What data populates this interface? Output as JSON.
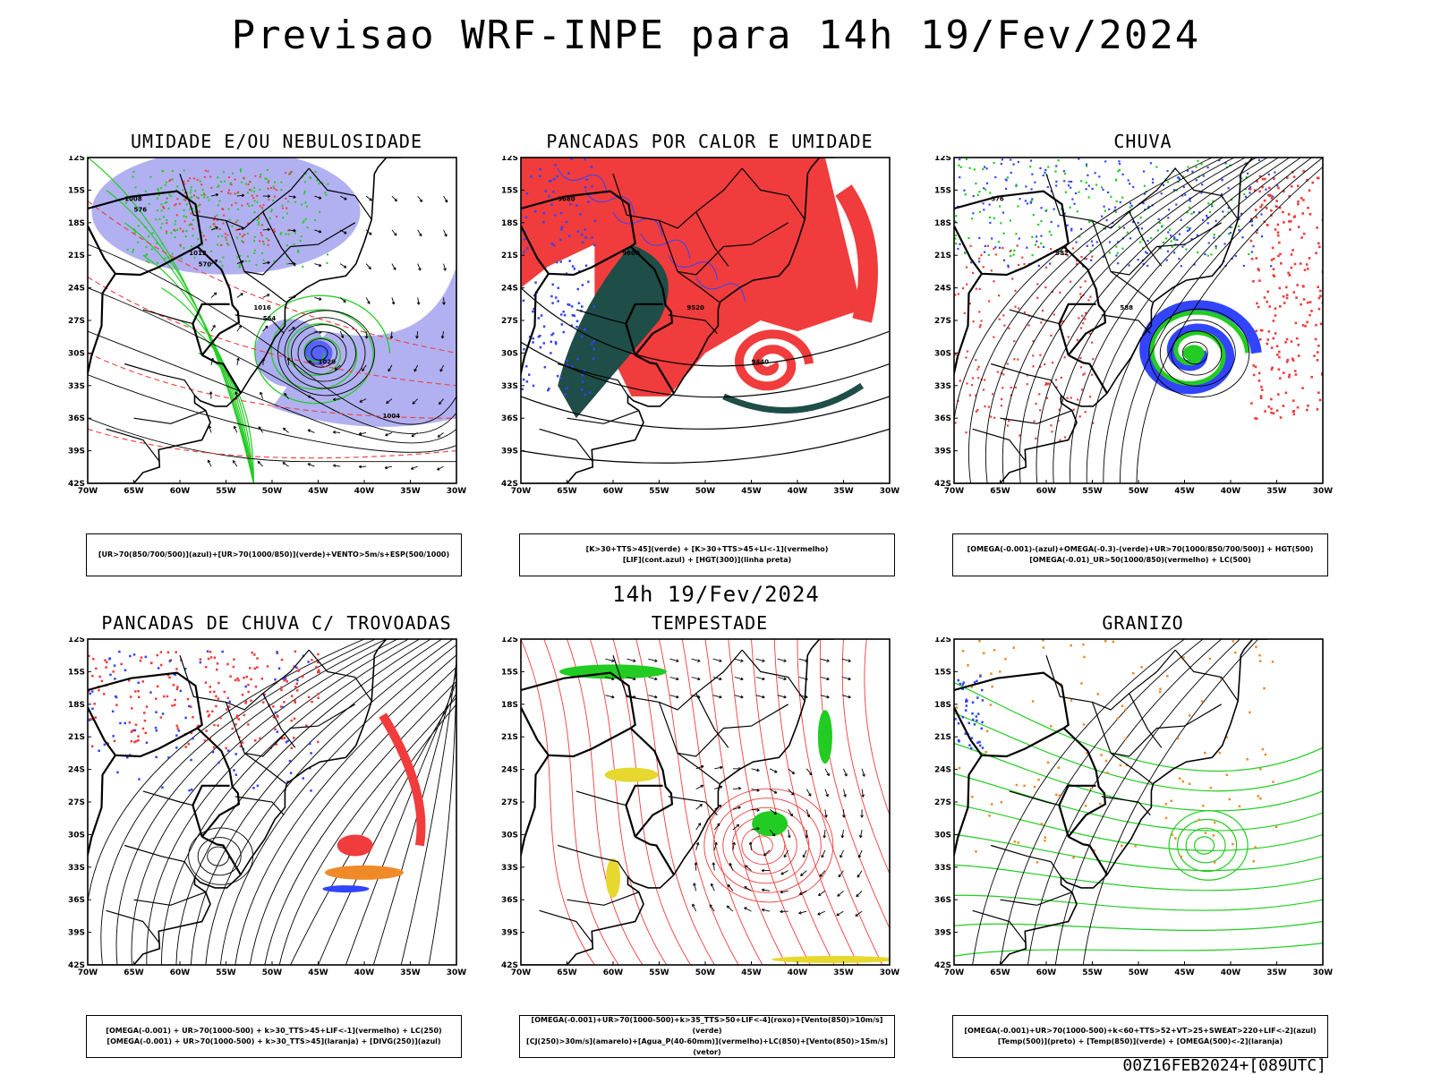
{
  "header": {
    "title": "Previsao WRF-INPE  para 14h 19/Fev/2024",
    "mid_title": "14h 19/Fev/2024",
    "footer": "00Z16FEB2024+[089UTC]"
  },
  "axes": {
    "lat_labels": [
      "12S",
      "15S",
      "18S",
      "21S",
      "24S",
      "27S",
      "30S",
      "33S",
      "36S",
      "39S",
      "42S"
    ],
    "lon_labels": [
      "70W",
      "65W",
      "60W",
      "55W",
      "50W",
      "45W",
      "40W",
      "35W",
      "30W"
    ]
  },
  "colors": {
    "blue": "#3344ff",
    "lavender": "#a8a8f0",
    "green": "#22cc22",
    "red": "#f03c3c",
    "dark_teal": "#1f4d48",
    "orange": "#f08a28",
    "yellow": "#e6d82e"
  },
  "panels": [
    {
      "title": "UMIDADE E/OU NEBULOSIDADE",
      "legend": [
        "[UR>70(850/700/500)](azul)+[UR>70(1000/850)](verde)+VENTO>5m/s+ESP(500/1000)"
      ],
      "contour_labels": [
        "1008",
        "1012",
        "1016",
        "1020",
        "1004",
        "576",
        "570",
        "564"
      ]
    },
    {
      "title": "PANCADAS POR CALOR E UMIDADE",
      "legend": [
        "[K>30+TTS>45](verde) + [K>30+TTS>45+LI<-1](vermelho)",
        "[LIF](cont.azul) + [HGT(300)](linha preta)"
      ],
      "contour_labels": [
        "9680",
        "9600",
        "9520",
        "9440"
      ]
    },
    {
      "title": "CHUVA",
      "legend": [
        "[OMEGA(-0.001)-(azul)+OMEGA(-0.3)-(verde)+UR>70(1000/850/700/500)] + HGT(500)",
        "[OMEGA(-0.01)_UR>50(1000/850)(vermelho) + LC(500)"
      ],
      "contour_labels": [
        "576",
        "582",
        "588"
      ]
    },
    {
      "title": "PANCADAS DE CHUVA C/ TROVOADAS",
      "legend": [
        "[OMEGA(-0.001) + UR>70(1000-500) + k>30_TTS>45+LIF<-1](vermelho) + LC(250)",
        "[OMEGA(-0.001) + UR>70(1000-500) + k>30_TTS>45](laranja) + [DIVG(250)](azul)"
      ],
      "contour_labels": []
    },
    {
      "title": "TEMPESTADE",
      "legend": [
        "[OMEGA(-0.001)+UR>70(1000-500)+k>35_TTS>50+LIF<-4](roxo)+[Vento(850)>10m/s](verde)",
        "[CJ(250)>30m/s](amarelo)+[Agua_P(40-60mm)](vermelho)+LC(850)+[Vento(850)>15m/s](vetor)"
      ],
      "contour_labels": []
    },
    {
      "title": "GRANIZO",
      "legend": [
        "[OMEGA(-0.001)+UR>70(1000-500)+k<60+TTS>52+VT>25+SWEAT>220+LIF<-2](azul)",
        "[Temp(500)](preto) + [Temp(850)](verde) + [OMEGA(500)<-2](laranja)"
      ],
      "contour_labels": []
    }
  ]
}
